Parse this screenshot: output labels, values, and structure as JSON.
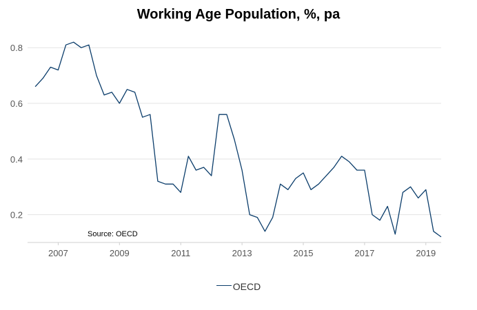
{
  "chart_data": {
    "type": "line",
    "title": "Working Age Population, %, pa",
    "source": "Source: OECD",
    "xlabel": "",
    "ylabel": "",
    "x_ticks": [
      "2007",
      "2009",
      "2011",
      "2013",
      "2015",
      "2017",
      "2019"
    ],
    "y_ticks": [
      "0.2",
      "0.4",
      "0.6",
      "0.8"
    ],
    "xlim": [
      "2006-01",
      "2019-07"
    ],
    "ylim": [
      0.1,
      0.86
    ],
    "grid": "horizontal",
    "legend_position": "bottom",
    "series": [
      {
        "name": "OECD",
        "color": "#0b3d6b",
        "points": [
          [
            "2006-04",
            0.66
          ],
          [
            "2006-07",
            0.69
          ],
          [
            "2006-10",
            0.73
          ],
          [
            "2007-01",
            0.72
          ],
          [
            "2007-04",
            0.81
          ],
          [
            "2007-07",
            0.82
          ],
          [
            "2007-10",
            0.8
          ],
          [
            "2008-01",
            0.81
          ],
          [
            "2008-04",
            0.7
          ],
          [
            "2008-07",
            0.63
          ],
          [
            "2008-10",
            0.64
          ],
          [
            "2009-01",
            0.6
          ],
          [
            "2009-04",
            0.65
          ],
          [
            "2009-07",
            0.64
          ],
          [
            "2009-10",
            0.55
          ],
          [
            "2010-01",
            0.56
          ],
          [
            "2010-04",
            0.32
          ],
          [
            "2010-07",
            0.31
          ],
          [
            "2010-10",
            0.31
          ],
          [
            "2011-01",
            0.28
          ],
          [
            "2011-04",
            0.41
          ],
          [
            "2011-07",
            0.36
          ],
          [
            "2011-10",
            0.37
          ],
          [
            "2012-01",
            0.34
          ],
          [
            "2012-04",
            0.56
          ],
          [
            "2012-07",
            0.56
          ],
          [
            "2012-10",
            0.47
          ],
          [
            "2013-01",
            0.36
          ],
          [
            "2013-04",
            0.2
          ],
          [
            "2013-07",
            0.19
          ],
          [
            "2013-10",
            0.14
          ],
          [
            "2014-01",
            0.19
          ],
          [
            "2014-04",
            0.31
          ],
          [
            "2014-07",
            0.29
          ],
          [
            "2014-10",
            0.33
          ],
          [
            "2015-01",
            0.35
          ],
          [
            "2015-04",
            0.29
          ],
          [
            "2015-07",
            0.31
          ],
          [
            "2015-10",
            0.34
          ],
          [
            "2016-01",
            0.37
          ],
          [
            "2016-04",
            0.41
          ],
          [
            "2016-07",
            0.39
          ],
          [
            "2016-10",
            0.36
          ],
          [
            "2017-01",
            0.36
          ],
          [
            "2017-04",
            0.2
          ],
          [
            "2017-07",
            0.18
          ],
          [
            "2017-10",
            0.23
          ],
          [
            "2018-01",
            0.13
          ],
          [
            "2018-04",
            0.28
          ],
          [
            "2018-07",
            0.3
          ],
          [
            "2018-10",
            0.26
          ],
          [
            "2019-01",
            0.29
          ],
          [
            "2019-04",
            0.14
          ],
          [
            "2019-07",
            0.12
          ]
        ]
      }
    ]
  }
}
